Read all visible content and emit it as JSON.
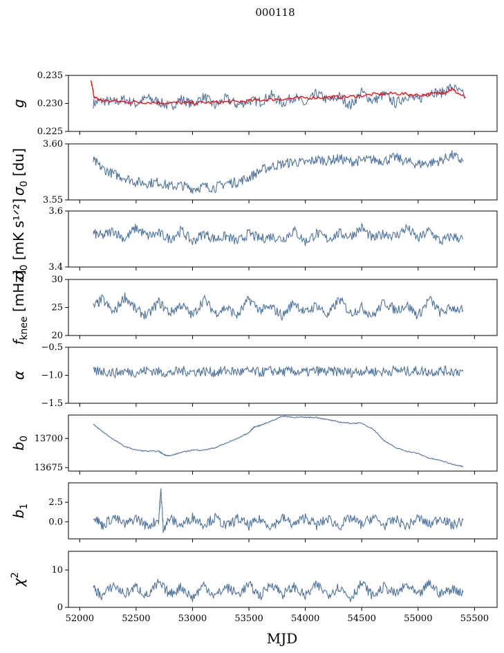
{
  "figure": {
    "title": "000118",
    "xlabel": "MJD"
  },
  "colors": {
    "series": "#4c72a0",
    "fit": "#ff0000"
  },
  "chart_data": [
    {
      "type": "line",
      "id": "g",
      "ylabel_main": "g",
      "ylabel_sub": "",
      "ylim": [
        0.225,
        0.235
      ],
      "yticks": [
        0.225,
        0.23,
        0.235
      ],
      "ytick_labels": [
        "0.225",
        "0.230",
        "0.235"
      ],
      "series": [
        {
          "name": "g",
          "color": "#4c72a0",
          "x": [
            52120,
            52200,
            52300,
            52400,
            52500,
            52600,
            52700,
            52800,
            52900,
            53000,
            53100,
            53200,
            53300,
            53400,
            53500,
            53600,
            53700,
            53800,
            53900,
            54000,
            54100,
            54200,
            54300,
            54400,
            54500,
            54600,
            54700,
            54800,
            54900,
            55000,
            55100,
            55200,
            55300,
            55420
          ],
          "y": [
            0.23,
            0.2305,
            0.2302,
            0.2307,
            0.2299,
            0.231,
            0.2303,
            0.2294,
            0.2308,
            0.2298,
            0.2312,
            0.2296,
            0.2309,
            0.2297,
            0.2305,
            0.2303,
            0.2315,
            0.23,
            0.2312,
            0.2298,
            0.2318,
            0.2305,
            0.2312,
            0.2296,
            0.232,
            0.2304,
            0.2316,
            0.23,
            0.2314,
            0.2305,
            0.2322,
            0.2318,
            0.233,
            0.2312
          ]
        },
        {
          "name": "g fit",
          "color": "#ff0000",
          "x": [
            52100,
            52130,
            52200,
            52400,
            52600,
            52800,
            53000,
            53200,
            53400,
            53600,
            53800,
            54000,
            54200,
            54400,
            54600,
            54800,
            55000,
            55200,
            55300,
            55420
          ],
          "y": [
            0.234,
            0.231,
            0.2305,
            0.2303,
            0.2302,
            0.2301,
            0.2301,
            0.2302,
            0.2303,
            0.2306,
            0.2308,
            0.231,
            0.2311,
            0.2312,
            0.2316,
            0.2318,
            0.2315,
            0.2318,
            0.2325,
            0.231
          ]
        }
      ]
    },
    {
      "type": "line",
      "id": "sigma0",
      "ylabel_main": "σ",
      "ylabel_sub": "0",
      "ylabel_suffix": " [du]",
      "ylim": [
        3.55,
        3.6
      ],
      "yticks": [
        3.55,
        3.6
      ],
      "ytick_labels": [
        "3.55",
        "3.60"
      ],
      "series": [
        {
          "name": "sigma0",
          "color": "#4c72a0",
          "x": [
            52120,
            52200,
            52300,
            52400,
            52500,
            52600,
            52700,
            52800,
            52900,
            53000,
            53100,
            53200,
            53300,
            53400,
            53500,
            53600,
            53700,
            53800,
            53900,
            54000,
            54100,
            54200,
            54300,
            54400,
            54500,
            54600,
            54700,
            54800,
            54900,
            55000,
            55100,
            55200,
            55300,
            55400
          ],
          "y": [
            3.585,
            3.578,
            3.573,
            3.57,
            3.566,
            3.565,
            3.566,
            3.562,
            3.563,
            3.56,
            3.562,
            3.561,
            3.565,
            3.566,
            3.57,
            3.576,
            3.58,
            3.582,
            3.584,
            3.583,
            3.586,
            3.585,
            3.587,
            3.584,
            3.585,
            3.586,
            3.585,
            3.588,
            3.584,
            3.582,
            3.583,
            3.585,
            3.59,
            3.584
          ]
        }
      ]
    },
    {
      "type": "line",
      "id": "sigma_mK",
      "ylabel_main": "σ",
      "ylabel_sub": "0",
      "ylabel_suffix": " [mK s¹ᐟ²]",
      "ylim": [
        3.4,
        3.6
      ],
      "yticks": [
        3.4,
        3.6
      ],
      "ytick_labels": [
        "3.4",
        "3.6"
      ],
      "series": [
        {
          "name": "sigma0 mK",
          "color": "#4c72a0",
          "x": [
            52120,
            52200,
            52300,
            52400,
            52500,
            52600,
            52700,
            52800,
            52900,
            53000,
            53100,
            53200,
            53300,
            53400,
            53500,
            53600,
            53700,
            53800,
            53900,
            54000,
            54100,
            54200,
            54300,
            54400,
            54500,
            54600,
            54700,
            54800,
            54900,
            55000,
            55100,
            55200,
            55300,
            55400
          ],
          "y": [
            3.52,
            3.51,
            3.53,
            3.5,
            3.54,
            3.51,
            3.52,
            3.5,
            3.53,
            3.49,
            3.52,
            3.5,
            3.51,
            3.49,
            3.52,
            3.5,
            3.51,
            3.5,
            3.53,
            3.49,
            3.52,
            3.5,
            3.52,
            3.51,
            3.54,
            3.5,
            3.52,
            3.51,
            3.54,
            3.5,
            3.53,
            3.49,
            3.51,
            3.5
          ]
        }
      ]
    },
    {
      "type": "line",
      "id": "fknee",
      "ylabel_main": "f",
      "ylabel_sub": "knee",
      "ylabel_suffix": " [mHz]",
      "ylim": [
        20,
        30
      ],
      "yticks": [
        20,
        25,
        30
      ],
      "ytick_labels": [
        "20",
        "25",
        "30"
      ],
      "series": [
        {
          "name": "fknee",
          "color": "#4c72a0",
          "x": [
            52120,
            52200,
            52300,
            52400,
            52500,
            52600,
            52700,
            52800,
            52900,
            53000,
            53100,
            53200,
            53300,
            53400,
            53500,
            53600,
            53700,
            53800,
            53900,
            54000,
            54100,
            54200,
            54300,
            54400,
            54500,
            54600,
            54700,
            54800,
            54900,
            55000,
            55100,
            55200,
            55300,
            55400
          ],
          "y": [
            25.0,
            26.5,
            24.0,
            27.0,
            24.5,
            23.5,
            26.0,
            24.0,
            25.5,
            23.5,
            26.5,
            24.0,
            25.0,
            23.5,
            26.5,
            24.5,
            25.0,
            23.5,
            26.0,
            24.0,
            25.5,
            23.5,
            26.5,
            24.0,
            25.0,
            23.5,
            26.0,
            24.5,
            25.5,
            23.5,
            26.5,
            24.0,
            25.0,
            24.5
          ]
        }
      ]
    },
    {
      "type": "line",
      "id": "alpha",
      "ylabel_main": "α",
      "ylabel_sub": "",
      "ylim": [
        -1.5,
        -0.5
      ],
      "yticks": [
        -1.5,
        -1.0,
        -0.5
      ],
      "ytick_labels": [
        "−1.5",
        "−1.0",
        "−0.5"
      ],
      "series": [
        {
          "name": "alpha",
          "color": "#4c72a0",
          "x": [
            52120,
            52200,
            52300,
            52400,
            52500,
            52600,
            52700,
            52800,
            52900,
            53000,
            53100,
            53200,
            53300,
            53400,
            53500,
            53600,
            53700,
            53800,
            53900,
            54000,
            54100,
            54200,
            54300,
            54400,
            54500,
            54600,
            54700,
            54800,
            54900,
            55000,
            55100,
            55200,
            55300,
            55400
          ],
          "y": [
            -0.95,
            -0.92,
            -0.96,
            -0.93,
            -0.95,
            -0.91,
            -0.94,
            -0.96,
            -0.92,
            -0.94,
            -0.93,
            -0.95,
            -0.92,
            -0.94,
            -0.93,
            -0.95,
            -0.92,
            -0.94,
            -0.93,
            -0.95,
            -0.92,
            -0.94,
            -0.93,
            -0.95,
            -0.92,
            -0.93,
            -0.94,
            -0.91,
            -0.93,
            -0.92,
            -0.94,
            -0.92,
            -0.93,
            -0.93
          ]
        }
      ]
    },
    {
      "type": "line",
      "id": "b0",
      "ylabel_main": "b",
      "ylabel_sub": "0",
      "ylim": [
        13672,
        13720
      ],
      "yticks": [
        13675,
        13700
      ],
      "ytick_labels": [
        "13675",
        "13700"
      ],
      "series": [
        {
          "name": "b0",
          "color": "#4c72a0",
          "x": [
            52120,
            52200,
            52300,
            52400,
            52500,
            52600,
            52700,
            52750,
            52800,
            52900,
            53000,
            53100,
            53200,
            53300,
            53400,
            53500,
            53550,
            53600,
            53700,
            53800,
            53900,
            54000,
            54100,
            54200,
            54300,
            54400,
            54500,
            54600,
            54700,
            54800,
            54900,
            55000,
            55100,
            55200,
            55300,
            55400
          ],
          "y": [
            13712,
            13706,
            13699,
            13693,
            13690,
            13689,
            13689,
            13686,
            13685,
            13688,
            13690,
            13690,
            13692,
            13696,
            13700,
            13705,
            13710,
            13711,
            13715,
            13719,
            13718,
            13718,
            13718,
            13716,
            13714,
            13713,
            13713,
            13708,
            13698,
            13692,
            13689,
            13687,
            13683,
            13681,
            13678,
            13676
          ]
        }
      ]
    },
    {
      "type": "line",
      "id": "b1",
      "ylabel_main": "b",
      "ylabel_sub": "1",
      "ylim": [
        -2.2,
        5.0
      ],
      "yticks": [
        0.0,
        2.5
      ],
      "ytick_labels": [
        "0.0",
        "2.5"
      ],
      "series": [
        {
          "name": "b1",
          "color": "#4c72a0",
          "x": [
            52120,
            52200,
            52300,
            52400,
            52500,
            52600,
            52700,
            52720,
            52740,
            52800,
            52900,
            53000,
            53100,
            53200,
            53300,
            53400,
            53500,
            53600,
            53700,
            53800,
            53900,
            54000,
            54100,
            54200,
            54300,
            54400,
            54500,
            54600,
            54700,
            54800,
            54900,
            55000,
            55100,
            55200,
            55300,
            55400
          ],
          "y": [
            0.8,
            -0.5,
            0.6,
            -0.4,
            0.5,
            -0.6,
            0.3,
            4.0,
            -0.8,
            0.4,
            -0.5,
            0.6,
            -0.3,
            0.5,
            -0.6,
            0.4,
            -0.5,
            0.3,
            -0.6,
            0.5,
            -0.4,
            0.6,
            -0.5,
            0.4,
            -0.6,
            0.5,
            -0.4,
            0.6,
            -0.5,
            0.3,
            -0.6,
            0.5,
            -0.4,
            0.6,
            -0.5,
            0.2
          ]
        }
      ]
    },
    {
      "type": "line",
      "id": "chi2",
      "ylabel_main": "χ",
      "ylabel_sup": "2",
      "ylim": [
        0,
        15
      ],
      "yticks": [
        0,
        10
      ],
      "ytick_labels": [
        "0",
        "10"
      ],
      "series": [
        {
          "name": "chi2",
          "color": "#4c72a0",
          "x": [
            52120,
            52200,
            52300,
            52400,
            52500,
            52600,
            52700,
            52800,
            52900,
            53000,
            53100,
            53200,
            53300,
            53400,
            53500,
            53600,
            53700,
            53800,
            53900,
            54000,
            54100,
            54200,
            54300,
            54400,
            54500,
            54600,
            54700,
            54800,
            54900,
            55000,
            55100,
            55200,
            55300,
            55400
          ],
          "y": [
            5.0,
            3.0,
            6.0,
            3.5,
            5.5,
            3.0,
            6.5,
            3.5,
            5.5,
            2.5,
            6.0,
            3.0,
            5.5,
            3.5,
            6.0,
            3.0,
            6.5,
            3.5,
            5.5,
            3.0,
            6.0,
            3.5,
            5.5,
            2.5,
            6.5,
            3.0,
            5.5,
            3.5,
            6.0,
            3.0,
            6.5,
            3.5,
            5.0,
            4.0
          ]
        }
      ]
    }
  ],
  "x_axis": {
    "xlim": [
      51900,
      55700
    ],
    "xticks": [
      52000,
      52500,
      53000,
      53500,
      54000,
      54500,
      55000,
      55500
    ],
    "xtick_labels": [
      "52000",
      "52500",
      "53000",
      "53500",
      "54000",
      "54500",
      "55000",
      "55500"
    ]
  }
}
